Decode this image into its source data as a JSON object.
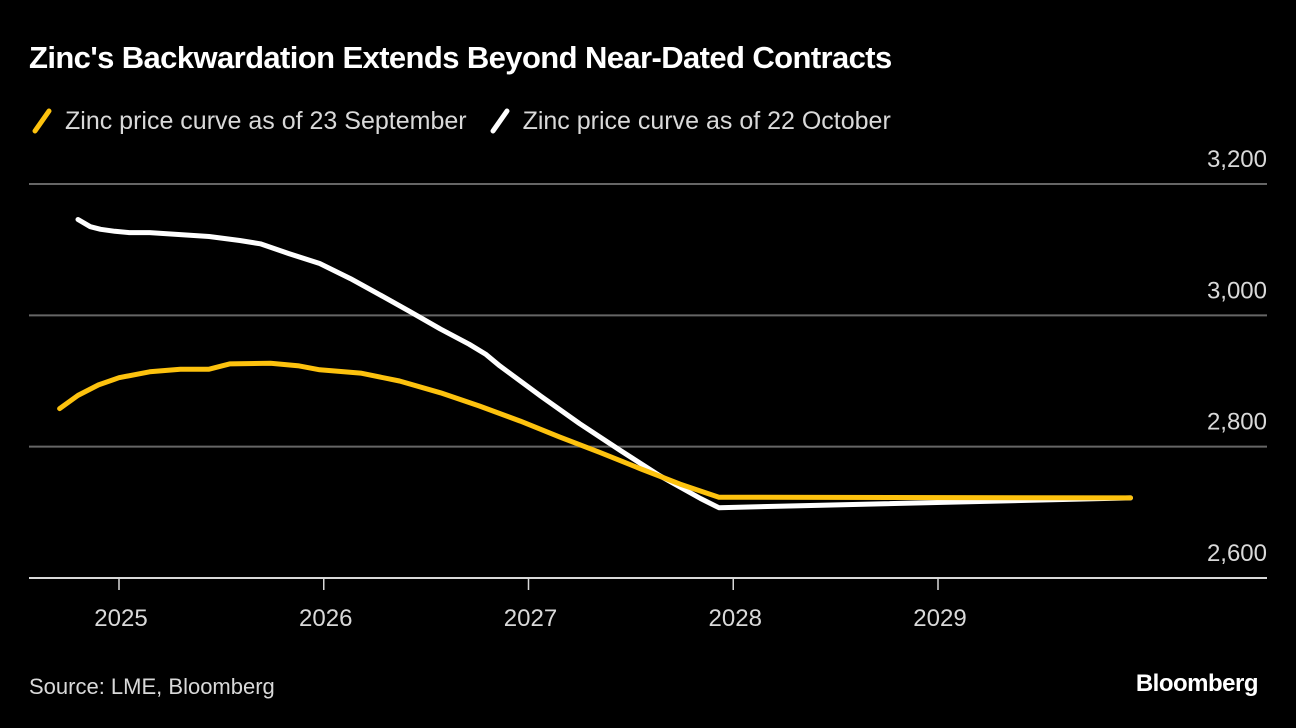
{
  "chart_data": {
    "type": "line",
    "title": "Zinc's Backwardation Extends Beyond Near-Dated Contracts",
    "xlabel": "",
    "ylabel": "",
    "x_ticks": [
      "2025",
      "2026",
      "2027",
      "2028",
      "2029"
    ],
    "y_ticks": [
      "3,200",
      "3,000",
      "2,800",
      "2,600"
    ],
    "y_tick_values": [
      3200,
      3000,
      2800,
      2600
    ],
    "ylim": [
      2600,
      3200
    ],
    "xlim": [
      2024.55,
      2031.1
    ],
    "grid": true,
    "legend_position": "top-left",
    "series": [
      {
        "name": "Zinc price curve as of 23 September",
        "color": "#fdc20e",
        "x": [
          2024.71,
          2024.8,
          2024.9,
          2025.0,
          2025.15,
          2025.3,
          2025.44,
          2025.54,
          2025.74,
          2025.88,
          2025.98,
          2026.18,
          2026.37,
          2026.57,
          2026.76,
          2026.96,
          2027.15,
          2027.35,
          2027.55,
          2027.74,
          2027.93,
          2029.94
        ],
        "values": [
          2858,
          2878,
          2894,
          2905,
          2914,
          2918,
          2918,
          2926,
          2927,
          2923,
          2917,
          2912,
          2900,
          2882,
          2862,
          2839,
          2815,
          2791,
          2766,
          2743,
          2723,
          2722
        ]
      },
      {
        "name": "Zinc price curve as of 22 October",
        "color": "#ffffff",
        "x": [
          2024.8,
          2024.86,
          2024.91,
          2024.98,
          2025.05,
          2025.15,
          2025.3,
          2025.44,
          2025.59,
          2025.69,
          2025.83,
          2025.98,
          2026.13,
          2026.27,
          2026.42,
          2026.57,
          2026.71,
          2026.79,
          2026.86,
          2027.06,
          2027.25,
          2027.45,
          2027.64,
          2027.84,
          2027.93,
          2029.94
        ],
        "values": [
          3146,
          3135,
          3131,
          3128,
          3126,
          3126,
          3123,
          3120,
          3114,
          3109,
          3094,
          3079,
          3056,
          3032,
          3006,
          2979,
          2956,
          2941,
          2923,
          2877,
          2835,
          2794,
          2756,
          2721,
          2707,
          2722
        ]
      }
    ]
  },
  "header": {
    "title": "Zinc's Backwardation Extends Beyond Near-Dated Contracts"
  },
  "legend": {
    "items": [
      {
        "label": "Zinc price curve as of 23 September",
        "color": "#fdc20e"
      },
      {
        "label": "Zinc price curve as of 22 October",
        "color": "#ffffff"
      }
    ]
  },
  "footer": {
    "source": "Source: LME, Bloomberg",
    "brand": "Bloomberg"
  }
}
